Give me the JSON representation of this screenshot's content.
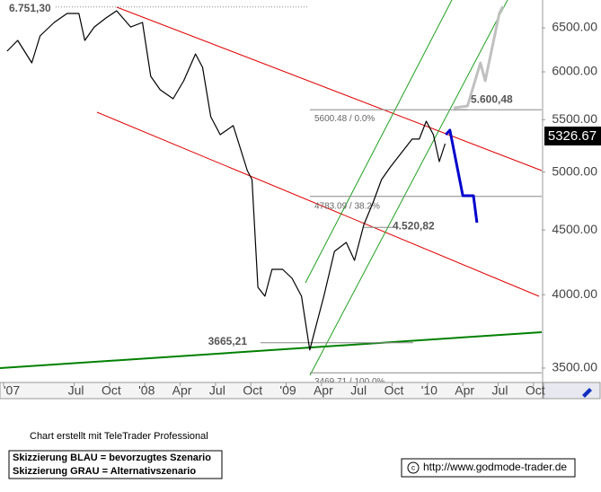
{
  "chart_data": {
    "type": "line",
    "log_scale": true,
    "xlim": [
      -0.3,
      45.7
    ],
    "ylim": [
      3415,
      6838
    ],
    "xticks": [
      {
        "value": 0,
        "label": "'07"
      },
      {
        "value": 6,
        "label": "Jul"
      },
      {
        "value": 9,
        "label": "Oct"
      },
      {
        "value": 12,
        "label": "'08"
      },
      {
        "value": 15,
        "label": "Apr"
      },
      {
        "value": 18,
        "label": "Jul"
      },
      {
        "value": 21,
        "label": "Oct"
      },
      {
        "value": 24,
        "label": "'09"
      },
      {
        "value": 27,
        "label": "Apr"
      },
      {
        "value": 30,
        "label": "Jul"
      },
      {
        "value": 33,
        "label": "Oct"
      },
      {
        "value": 36,
        "label": "'10"
      },
      {
        "value": 39,
        "label": "Apr"
      },
      {
        "value": 42,
        "label": "Jul"
      },
      {
        "value": 45,
        "label": "Oct"
      }
    ],
    "yticks": [
      {
        "value": 3500,
        "label": "3500.00"
      },
      {
        "value": 4000,
        "label": "4000.00"
      },
      {
        "value": 4500,
        "label": "4500.00"
      },
      {
        "value": 5000,
        "label": "5000.00"
      },
      {
        "value": 5500,
        "label": "5500.00"
      },
      {
        "value": 6000,
        "label": "6000.00"
      },
      {
        "value": 6500,
        "label": "6500.00"
      }
    ],
    "series": [
      {
        "color": "#000000",
        "x": [
          0.3,
          1.2,
          2.4,
          3.1,
          4.3,
          5.4,
          6.4,
          6.9,
          7.7,
          8.7,
          9.6,
          10.8,
          11.8,
          12.5,
          13.3,
          14.4,
          15.3,
          16.3,
          16.9,
          17.6,
          18.4,
          19.5,
          20.7,
          21.1,
          21.6,
          22.2,
          22.8,
          23.7,
          24.5,
          25.3,
          26.0,
          26.4,
          27.2,
          28.1,
          29.1,
          29.8,
          30.6,
          31.4,
          32.1,
          32.9,
          33.8,
          34.7,
          35.3,
          35.9,
          36.5,
          37.0,
          37.5
        ],
        "values": [
          6230,
          6353,
          6099,
          6405,
          6564,
          6672,
          6672,
          6353,
          6510,
          6618,
          6705,
          6510,
          6564,
          5951,
          5807,
          5713,
          5903,
          6199,
          6049,
          5530,
          5352,
          5441,
          5013,
          4932,
          4054,
          3989,
          4189,
          4189,
          4121,
          3989,
          3617,
          3737,
          3989,
          4328,
          4399,
          4258,
          4545,
          4735,
          4932,
          5054,
          5180,
          5309,
          5309,
          5485,
          5352,
          5096,
          5265
        ]
      },
      {
        "color": "#0000cc",
        "x": [
          37.55,
          37.9,
          39.0,
          39.9,
          40.2
        ],
        "values": [
          5352,
          5396,
          4789,
          4789,
          4560
        ]
      },
      {
        "color": "#c0c0c0",
        "x": [
          38.25,
          39.4,
          40.5,
          40.9,
          42.1,
          42.4
        ],
        "values": [
          5620,
          5639,
          6099,
          5903,
          6672,
          6758
        ]
      }
    ],
    "annotations": [
      {
        "text": "6.751,30",
        "value": 6751.3
      },
      {
        "text": "3665,21",
        "value": 3665.21
      },
      {
        "text": "5.600,48",
        "value": 5600.48
      },
      {
        "text": "4.520,82",
        "value": 4520.82
      },
      {
        "text": "5600.48 / 0.0%",
        "value": 5600.48
      },
      {
        "text": "4783.09 / 38.2%",
        "value": 4783.09
      },
      {
        "text": "3469.71 / 100.0%",
        "value": 3469.71
      }
    ],
    "current_price": {
      "value": 5326.67,
      "label": "5326.67"
    }
  },
  "footer": {
    "credit": "Chart erstellt mit TeleTrader Professional",
    "legend_blue": "Skizzierung BLAU = bevorzugtes Szenario",
    "legend_gray": "Skizzierung GRAU = Alternativszenario",
    "url": "http://www.godmode-trader.de"
  }
}
